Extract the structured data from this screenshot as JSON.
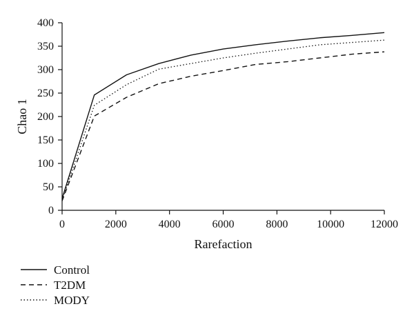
{
  "chart_data": {
    "type": "line",
    "xlabel": "Rarefaction",
    "ylabel": "Chao 1",
    "xlim": [
      0,
      12000
    ],
    "ylim": [
      0,
      400
    ],
    "xticks": [
      0,
      2000,
      4000,
      6000,
      8000,
      10000,
      12000
    ],
    "yticks": [
      0,
      50,
      100,
      150,
      200,
      250,
      300,
      350,
      400
    ],
    "grid": false,
    "legend_position": "bottom-left",
    "series": [
      {
        "name": "Control",
        "line_style": "solid",
        "x": [
          0,
          1200,
          2400,
          3600,
          4800,
          6000,
          7200,
          8400,
          9600,
          10800,
          12000
        ],
        "y": [
          25,
          246,
          289,
          313,
          331,
          344,
          353,
          361,
          368,
          373,
          379
        ]
      },
      {
        "name": "T2DM",
        "line_style": "dashed",
        "x": [
          0,
          1200,
          2400,
          3600,
          4800,
          6000,
          7200,
          8400,
          9600,
          10800,
          12000
        ],
        "y": [
          20,
          201,
          241,
          270,
          286,
          298,
          311,
          317,
          325,
          333,
          338
        ]
      },
      {
        "name": "MODY",
        "line_style": "dotted",
        "x": [
          0,
          1200,
          2400,
          3600,
          4800,
          6000,
          7200,
          8400,
          9600,
          10800,
          12000
        ],
        "y": [
          22,
          224,
          268,
          301,
          313,
          325,
          335,
          344,
          353,
          358,
          363
        ]
      }
    ]
  }
}
